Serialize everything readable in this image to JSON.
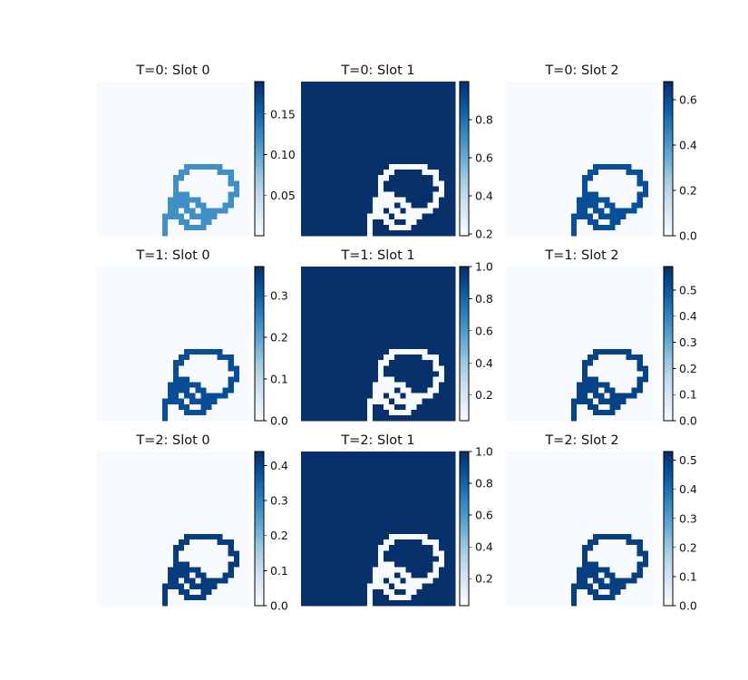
{
  "chart_data": {
    "type": "heatmap",
    "layout": {
      "rows": 3,
      "cols": 3
    },
    "grid_size": 28,
    "colormap": "Blues",
    "colormap_stops": [
      "#f7fbff",
      "#deebf7",
      "#c6dbef",
      "#9ecae1",
      "#6baed6",
      "#4292c6",
      "#2171b5",
      "#08519c",
      "#08306b"
    ],
    "grid": false,
    "panels": [
      {
        "title": "T=0: Slot 0",
        "range": [
          0.0,
          0.19
        ],
        "ticks": [
          "0.05",
          "0.10",
          "0.15"
        ],
        "tick_values": [
          0.05,
          0.1,
          0.15
        ],
        "background": 0.0,
        "stroke": 0.12,
        "mode": "stroke"
      },
      {
        "title": "T=0: Slot 1",
        "range": [
          0.19,
          1.0
        ],
        "ticks": [
          "0.2",
          "0.4",
          "0.6",
          "0.8"
        ],
        "tick_values": [
          0.2,
          0.4,
          0.6,
          0.8
        ],
        "background": 1.0,
        "stroke": 0.19,
        "mode": "gap"
      },
      {
        "title": "T=0: Slot 2",
        "range": [
          0.0,
          0.68
        ],
        "ticks": [
          "0.0",
          "0.2",
          "0.4",
          "0.6"
        ],
        "tick_values": [
          0.0,
          0.2,
          0.4,
          0.6
        ],
        "background": 0.0,
        "stroke": 0.6,
        "mode": "stroke"
      },
      {
        "title": "T=1: Slot 0",
        "range": [
          0.0,
          0.37
        ],
        "ticks": [
          "0.0",
          "0.1",
          "0.2",
          "0.3"
        ],
        "tick_values": [
          0.0,
          0.1,
          0.2,
          0.3
        ],
        "background": 0.0,
        "stroke": 0.33,
        "mode": "stroke"
      },
      {
        "title": "T=1: Slot 1",
        "range": [
          0.04,
          1.0
        ],
        "ticks": [
          "0.2",
          "0.4",
          "0.6",
          "0.8",
          "1.0"
        ],
        "tick_values": [
          0.2,
          0.4,
          0.6,
          0.8,
          1.0
        ],
        "background": 1.0,
        "stroke": 0.04,
        "mode": "gap"
      },
      {
        "title": "T=1: Slot 2",
        "range": [
          0.0,
          0.59
        ],
        "ticks": [
          "0.0",
          "0.1",
          "0.2",
          "0.3",
          "0.4",
          "0.5"
        ],
        "tick_values": [
          0.0,
          0.1,
          0.2,
          0.3,
          0.4,
          0.5
        ],
        "background": 0.0,
        "stroke": 0.55,
        "mode": "stroke"
      },
      {
        "title": "T=2: Slot 0",
        "range": [
          0.0,
          0.44
        ],
        "ticks": [
          "0.0",
          "0.1",
          "0.2",
          "0.3",
          "0.4"
        ],
        "tick_values": [
          0.0,
          0.1,
          0.2,
          0.3,
          0.4
        ],
        "background": 0.0,
        "stroke": 0.42,
        "mode": "stroke"
      },
      {
        "title": "T=2: Slot 1",
        "range": [
          0.03,
          1.0
        ],
        "ticks": [
          "0.2",
          "0.4",
          "0.6",
          "0.8",
          "1.0"
        ],
        "tick_values": [
          0.2,
          0.4,
          0.6,
          0.8,
          1.0
        ],
        "background": 1.0,
        "stroke": 0.03,
        "mode": "gap"
      },
      {
        "title": "T=2: Slot 2",
        "range": [
          0.0,
          0.53
        ],
        "ticks": [
          "0.0",
          "0.1",
          "0.2",
          "0.3",
          "0.4",
          "0.5"
        ],
        "tick_values": [
          0.0,
          0.1,
          0.2,
          0.3,
          0.4,
          0.5
        ],
        "background": 0.0,
        "stroke": 0.5,
        "mode": "stroke"
      }
    ]
  }
}
